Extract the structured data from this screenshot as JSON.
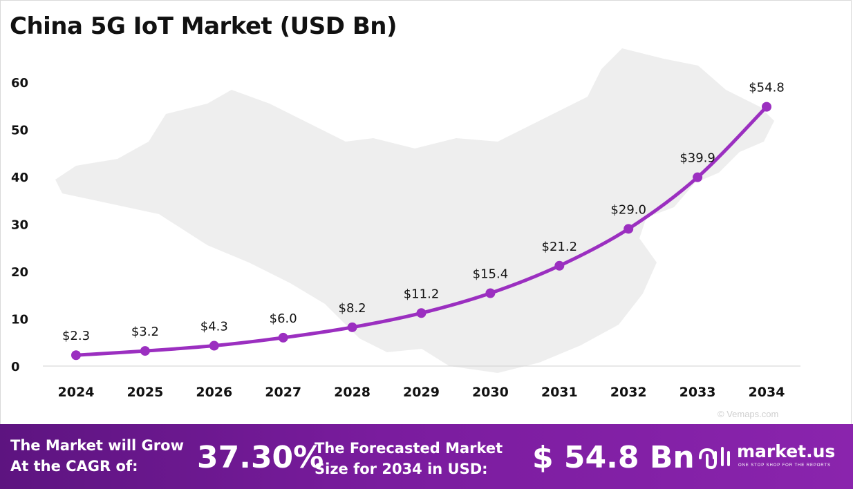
{
  "title": "China 5G IoT Market (USD Bn)",
  "watermark": "© Vemaps.com",
  "chart_data": {
    "type": "line",
    "title": "China 5G IoT Market (USD Bn)",
    "x": [
      "2024",
      "2025",
      "2026",
      "2027",
      "2028",
      "2029",
      "2030",
      "2031",
      "2032",
      "2033",
      "2034"
    ],
    "y": [
      2.3,
      3.2,
      4.3,
      6.0,
      8.2,
      11.2,
      15.4,
      21.2,
      29.0,
      39.9,
      54.8
    ],
    "data_labels": [
      "$2.3",
      "$3.2",
      "$4.3",
      "$6.0",
      "$8.2",
      "$11.2",
      "$15.4",
      "$21.2",
      "$29.0",
      "$39.9",
      "$54.8"
    ],
    "yticks": [
      "0",
      "10",
      "20",
      "30",
      "40",
      "50",
      "60"
    ],
    "ylim": [
      0,
      60
    ],
    "xlabel": "",
    "ylabel": "",
    "grid": false,
    "line_color": "#9b2fc0"
  },
  "footer": {
    "cagr_line1": "The Market will Grow",
    "cagr_line2": "At the CAGR of:",
    "cagr_value": "37.30%",
    "forecast_line1": "The Forecasted Market",
    "forecast_line2": "Size for 2034 in USD:",
    "forecast_value": "$ 54.8 Bn",
    "brand_name": "market.us",
    "brand_tagline": "ONE STOP SHOP FOR THE REPORTS",
    "background": "#6a1a91"
  }
}
